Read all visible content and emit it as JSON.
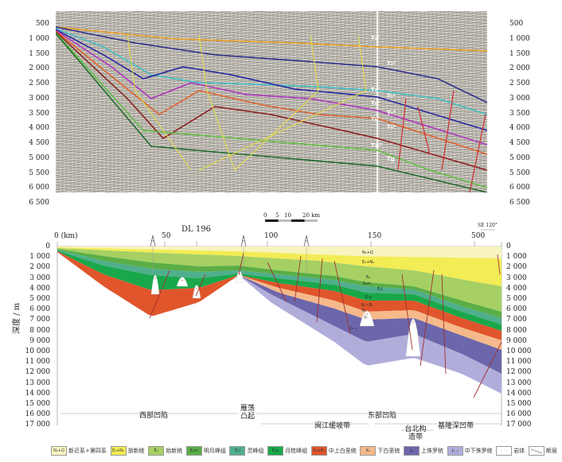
{
  "seismic": {
    "depth_ticks": [
      "500",
      "1 000",
      "1 500",
      "2 000",
      "2 500",
      "3 000",
      "3 500",
      "4 000",
      "4 500",
      "5 000",
      "5 500",
      "6 000",
      "6 500"
    ],
    "horizon_labels": [
      "T₂⁰",
      "T₃⁰",
      "T₄⁰",
      "T₅⁰",
      "T₆⁰",
      "T₇⁰",
      "T₈⁰",
      "T₉⁰",
      "T₁₀⁰",
      "Tg"
    ]
  },
  "scale_bar": {
    "labels": [
      "0",
      "5",
      "10",
      "20 km"
    ]
  },
  "section": {
    "ylabel": "深度 / m",
    "depth_ticks": [
      "0",
      "1 000",
      "2 000",
      "3 000",
      "4 000",
      "5 000",
      "6 000",
      "7 000",
      "8 000",
      "9 000",
      "10 000",
      "11 000",
      "12 000",
      "13 000",
      "14 000",
      "15 000",
      "16 000",
      "17 000"
    ],
    "distance_ticks": [
      "0 (km)",
      "50",
      "100",
      "150",
      "500"
    ],
    "well_name": "DL 196",
    "direction": "SE 120°",
    "formation_labels": [
      "N₂+Q",
      "E₃+N₁",
      "E₂",
      "E₂m",
      "E₁l",
      "E₁y",
      "K₂~E₁",
      "K₁",
      "J₃",
      "J₁₋₂"
    ],
    "regions": {
      "west_sag": "西部凹陷",
      "yandang_uplift": "雁荡凸起",
      "east_sag": "东部凹陷",
      "minjiang_slope": "闽江缓坡带",
      "taibei_structure": "台北构造带",
      "jilong_deep": "基隆深凹带"
    }
  },
  "legend": [
    {
      "code": "N₂+Q",
      "label": "新近系+第四系",
      "color": "#f8f4bf"
    },
    {
      "code": "E₃+N₁",
      "label": "渐新统",
      "color": "#f2ec55"
    },
    {
      "code": "E₂",
      "label": "始新统",
      "color": "#a6d063"
    },
    {
      "code": "E₂m",
      "label": "明月峰组",
      "color": "#5aae45"
    },
    {
      "code": "E₁l",
      "label": "灵峰组",
      "color": "#4fae8c"
    },
    {
      "code": "E₁y",
      "label": "月桂峰组",
      "color": "#18a84a"
    },
    {
      "code": "K₂+E₁",
      "label": "中上白垩统",
      "color": "#e0552b"
    },
    {
      "code": "K₁",
      "label": "下白垩统",
      "color": "#f5b98b"
    },
    {
      "code": "J₃",
      "label": "上侏罗统",
      "color": "#6c66ab"
    },
    {
      "code": "J₁₋₂",
      "label": "中下侏罗统",
      "color": "#b1addb"
    },
    {
      "code": "",
      "label": "岩体",
      "color": "#ffffff"
    },
    {
      "code": "",
      "label": "断层",
      "color": "#ffffff"
    }
  ]
}
